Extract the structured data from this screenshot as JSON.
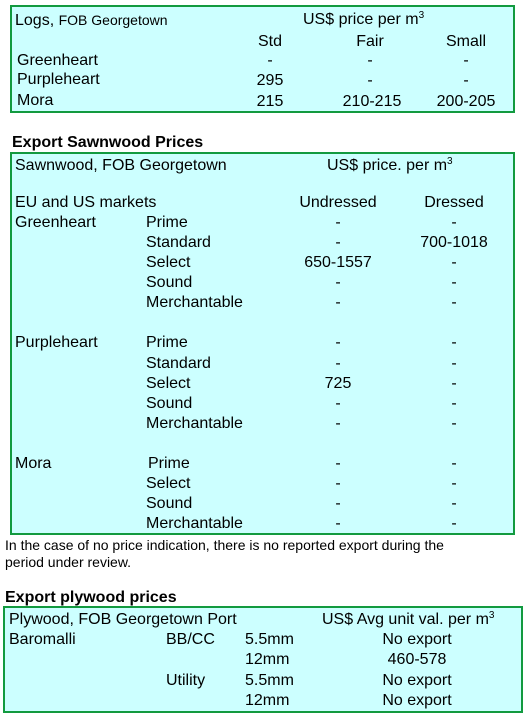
{
  "logs": {
    "title_main": "Logs,",
    "title_sub": "FOB Georgetown",
    "price_header": "US$ price per m",
    "price_unit_sup": "3",
    "columns": [
      "Std",
      "Fair",
      "Small"
    ],
    "rows": [
      {
        "species": "Greenheart",
        "std": "-",
        "fair": "-",
        "small": "-"
      },
      {
        "species": "Purpleheart",
        "std": "295",
        "fair": "-",
        "small": "-"
      },
      {
        "species": "Mora",
        "std": "215",
        "fair": "210-215",
        "small": "200-205"
      }
    ]
  },
  "sawnwood": {
    "section_title": "Export Sawnwood Prices",
    "title": "Sawnwood, FOB Georgetown",
    "price_header": "US$ price. per m",
    "price_unit_sup": "3",
    "markets_label": "EU and US markets",
    "col_undressed": "Undressed",
    "col_dressed": "Dressed",
    "species": [
      {
        "name": "Greenheart",
        "grades": [
          {
            "grade": "Prime",
            "undressed": "-",
            "dressed": "-"
          },
          {
            "grade": "Standard",
            "undressed": "-",
            "dressed": "700-1018"
          },
          {
            "grade": "Select",
            "undressed": "650-1557",
            "dressed": "-"
          },
          {
            "grade": "Sound",
            "undressed": "-",
            "dressed": "-"
          },
          {
            "grade": "Merchantable",
            "undressed": "-",
            "dressed": "-"
          }
        ]
      },
      {
        "name": "Purpleheart",
        "grades": [
          {
            "grade": "Prime",
            "undressed": "-",
            "dressed": "-"
          },
          {
            "grade": "Standard",
            "undressed": "-",
            "dressed": "-"
          },
          {
            "grade": "Select",
            "undressed": "725",
            "dressed": "-"
          },
          {
            "grade": "Sound",
            "undressed": "-",
            "dressed": "-"
          },
          {
            "grade": "Merchantable",
            "undressed": "-",
            "dressed": "-"
          }
        ]
      },
      {
        "name": "Mora",
        "grades": [
          {
            "grade": "Prime",
            "undressed": "-",
            "dressed": "-"
          },
          {
            "grade": "Select",
            "undressed": "-",
            "dressed": "-"
          },
          {
            "grade": "Sound",
            "undressed": "-",
            "dressed": "-"
          },
          {
            "grade": "Merchantable",
            "undressed": "-",
            "dressed": "-"
          }
        ]
      }
    ],
    "note_line1": "In the case of no price indication, there is no reported export during the",
    "note_line2": "period under review."
  },
  "plywood": {
    "section_title": "Export plywood prices",
    "title": "Plywood, FOB Georgetown Port",
    "price_header": "US$ Avg unit val. per m",
    "price_unit_sup": "3",
    "species": "Baromalli",
    "rows": [
      {
        "grade": "BB/CC",
        "thickness": "5.5mm",
        "value": "No export"
      },
      {
        "grade": "",
        "thickness": "12mm",
        "value": "460-578"
      },
      {
        "grade": "Utility",
        "thickness": "5.5mm",
        "value": "No export"
      },
      {
        "grade": "",
        "thickness": "12mm",
        "value": "No export"
      }
    ]
  }
}
